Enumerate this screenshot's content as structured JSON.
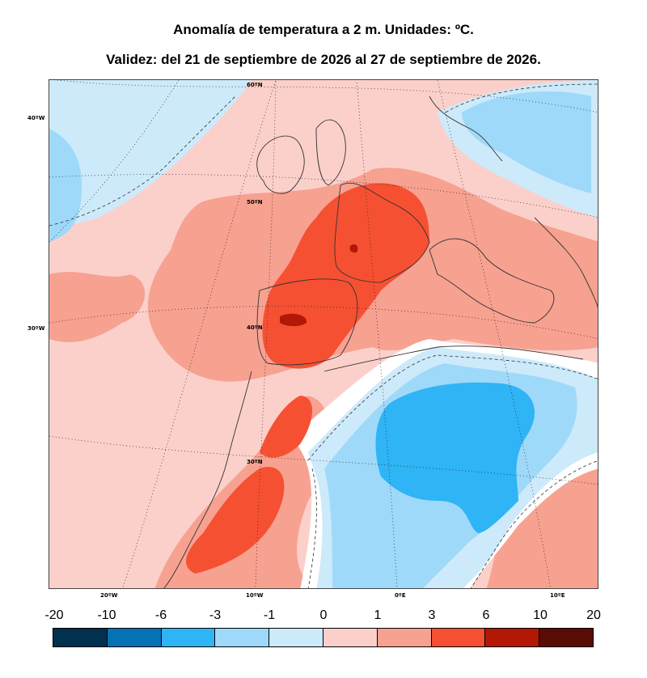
{
  "title": "Anomalía de temperatura a 2 m. Unidades: ºC.",
  "subtitle": "Validez: del 21 de septiembre de 2026 al 27 de septiembre de 2026.",
  "map": {
    "lat_labels": [
      "60ºN",
      "50ºN",
      "40ºN",
      "30ºN"
    ],
    "lon_left_labels": [
      "40ºW",
      "30ºW"
    ],
    "lon_bottom_labels": [
      "20ºW",
      "10ºW",
      "0ºE",
      "10ºE"
    ]
  },
  "colorbar": {
    "ticks": [
      "-20",
      "-10",
      "-6",
      "-3",
      "-1",
      "0",
      "1",
      "3",
      "6",
      "10",
      "20"
    ],
    "colors": [
      "#02304f",
      "#0572b3",
      "#2fb4f5",
      "#9fd9f9",
      "#cdeafb",
      "#fbd0cb",
      "#f7a191",
      "#f65033",
      "#b31806",
      "#5a0b06"
    ]
  }
}
